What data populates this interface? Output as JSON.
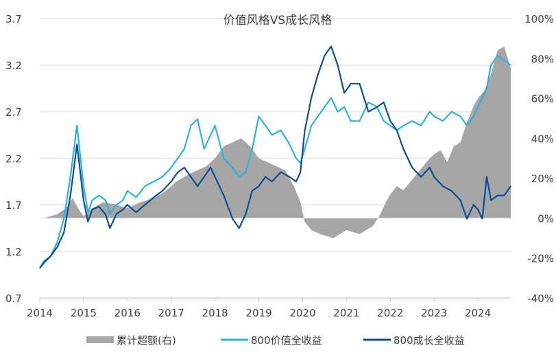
{
  "chart_data": {
    "type": "line",
    "title": "价值风格VS成长风格",
    "x_ticks": [
      "2014",
      "2015",
      "2016",
      "2017",
      "2018",
      "2019",
      "2020",
      "2021",
      "2022",
      "2023",
      "2024"
    ],
    "xlim": [
      2014.0,
      2024.75
    ],
    "y_left": {
      "ticks": [
        "0.7",
        "1.2",
        "1.7",
        "2.2",
        "2.7",
        "3.2",
        "3.7"
      ],
      "lim": [
        0.7,
        3.7
      ]
    },
    "y_right": {
      "ticks": [
        "-40%",
        "-20%",
        "0%",
        "20%",
        "40%",
        "60%",
        "80%",
        "100%"
      ],
      "lim": [
        -40,
        100
      ]
    },
    "grid": "horizontal",
    "legend_position": "bottom",
    "series": [
      {
        "name": "累计超额(右)",
        "kind": "area",
        "axis": "right",
        "color": "#a6a6a6",
        "x": [
          2014.0,
          2014.1,
          2014.25,
          2014.4,
          2014.6,
          2014.75,
          2014.9,
          2015.0,
          2015.2,
          2015.45,
          2015.7,
          2016.0,
          2016.3,
          2016.6,
          2016.9,
          2017.1,
          2017.4,
          2017.6,
          2017.8,
          2018.0,
          2018.2,
          2018.4,
          2018.6,
          2018.8,
          2019.0,
          2019.2,
          2019.4,
          2019.6,
          2019.8,
          2019.95,
          2020.05,
          2020.2,
          2020.4,
          2020.55,
          2020.7,
          2020.85,
          2021.0,
          2021.15,
          2021.3,
          2021.45,
          2021.6,
          2021.75,
          2021.9,
          2022.0,
          2022.15,
          2022.3,
          2022.45,
          2022.6,
          2022.75,
          2022.9,
          2023.0,
          2023.15,
          2023.3,
          2023.45,
          2023.6,
          2023.75,
          2023.9,
          2024.0,
          2024.15,
          2024.3,
          2024.45,
          2024.6,
          2024.75
        ],
        "values": [
          0,
          0,
          1,
          2,
          5,
          10,
          4,
          1,
          5,
          8,
          7,
          5,
          8,
          10,
          14,
          18,
          22,
          24,
          26,
          30,
          36,
          38,
          40,
          36,
          30,
          28,
          26,
          24,
          16,
          8,
          -2,
          -6,
          -8,
          -9,
          -10,
          -8,
          -6,
          -7,
          -8,
          -6,
          -4,
          1,
          8,
          12,
          16,
          14,
          18,
          22,
          26,
          30,
          32,
          34,
          28,
          36,
          38,
          48,
          56,
          60,
          64,
          72,
          84,
          86,
          75
        ]
      },
      {
        "name": "800价值全收益",
        "kind": "line",
        "axis": "left",
        "color": "#29b2e1",
        "x": [
          2014.0,
          2014.1,
          2014.25,
          2014.4,
          2014.55,
          2014.7,
          2014.85,
          2015.0,
          2015.1,
          2015.2,
          2015.35,
          2015.5,
          2015.6,
          2015.75,
          2015.9,
          2016.0,
          2016.2,
          2016.4,
          2016.6,
          2016.8,
          2017.0,
          2017.15,
          2017.3,
          2017.45,
          2017.6,
          2017.75,
          2017.9,
          2018.0,
          2018.2,
          2018.4,
          2018.55,
          2018.7,
          2018.85,
          2019.0,
          2019.15,
          2019.3,
          2019.5,
          2019.7,
          2019.85,
          2019.95,
          2020.05,
          2020.2,
          2020.35,
          2020.5,
          2020.65,
          2020.8,
          2020.95,
          2021.1,
          2021.3,
          2021.5,
          2021.7,
          2021.85,
          2022.0,
          2022.15,
          2022.3,
          2022.5,
          2022.7,
          2022.9,
          2023.0,
          2023.2,
          2023.4,
          2023.6,
          2023.75,
          2023.9,
          2024.0,
          2024.1,
          2024.2,
          2024.3,
          2024.45,
          2024.6,
          2024.75
        ],
        "values": [
          1.02,
          1.1,
          1.15,
          1.3,
          1.55,
          2.0,
          2.55,
          1.9,
          1.62,
          1.75,
          1.8,
          1.75,
          1.6,
          1.7,
          1.75,
          1.85,
          1.78,
          1.9,
          1.95,
          2.0,
          2.1,
          2.2,
          2.3,
          2.55,
          2.62,
          2.3,
          2.45,
          2.55,
          2.2,
          2.1,
          2.0,
          2.05,
          2.3,
          2.65,
          2.55,
          2.45,
          2.5,
          2.35,
          2.2,
          2.15,
          2.3,
          2.55,
          2.65,
          2.75,
          2.85,
          2.7,
          2.75,
          2.6,
          2.6,
          2.8,
          2.75,
          2.6,
          2.55,
          2.5,
          2.55,
          2.6,
          2.55,
          2.7,
          2.65,
          2.6,
          2.7,
          2.65,
          2.55,
          2.65,
          2.75,
          2.85,
          2.95,
          3.2,
          3.3,
          3.25,
          3.2
        ]
      },
      {
        "name": "800成长全收益",
        "kind": "line",
        "axis": "left",
        "color": "#0d4d96",
        "x": [
          2014.0,
          2014.1,
          2014.25,
          2014.4,
          2014.55,
          2014.7,
          2014.85,
          2015.0,
          2015.1,
          2015.2,
          2015.35,
          2015.5,
          2015.6,
          2015.75,
          2015.9,
          2016.0,
          2016.2,
          2016.4,
          2016.6,
          2016.8,
          2017.0,
          2017.15,
          2017.3,
          2017.45,
          2017.6,
          2017.75,
          2017.9,
          2018.0,
          2018.2,
          2018.4,
          2018.55,
          2018.7,
          2018.85,
          2019.0,
          2019.15,
          2019.3,
          2019.5,
          2019.7,
          2019.85,
          2019.95,
          2020.05,
          2020.2,
          2020.35,
          2020.5,
          2020.65,
          2020.8,
          2020.95,
          2021.1,
          2021.3,
          2021.5,
          2021.7,
          2021.85,
          2022.0,
          2022.15,
          2022.3,
          2022.5,
          2022.7,
          2022.9,
          2023.0,
          2023.2,
          2023.4,
          2023.6,
          2023.75,
          2023.9,
          2024.0,
          2024.1,
          2024.2,
          2024.3,
          2024.45,
          2024.6,
          2024.75
        ],
        "values": [
          1.02,
          1.08,
          1.15,
          1.25,
          1.4,
          1.8,
          2.35,
          1.75,
          1.52,
          1.65,
          1.68,
          1.6,
          1.45,
          1.6,
          1.65,
          1.7,
          1.62,
          1.7,
          1.78,
          1.85,
          1.95,
          2.05,
          2.1,
          2.0,
          1.9,
          2.0,
          2.1,
          2.0,
          1.8,
          1.55,
          1.45,
          1.6,
          1.85,
          1.9,
          2.0,
          1.95,
          2.05,
          2.0,
          1.95,
          2.05,
          2.5,
          2.85,
          3.1,
          3.3,
          3.4,
          3.2,
          2.9,
          3.0,
          3.0,
          2.7,
          2.75,
          2.8,
          2.6,
          2.5,
          2.3,
          2.1,
          2.0,
          2.1,
          2.0,
          1.9,
          1.85,
          1.75,
          1.55,
          1.7,
          1.65,
          1.55,
          2.0,
          1.75,
          1.8,
          1.8,
          1.9
        ]
      }
    ]
  }
}
